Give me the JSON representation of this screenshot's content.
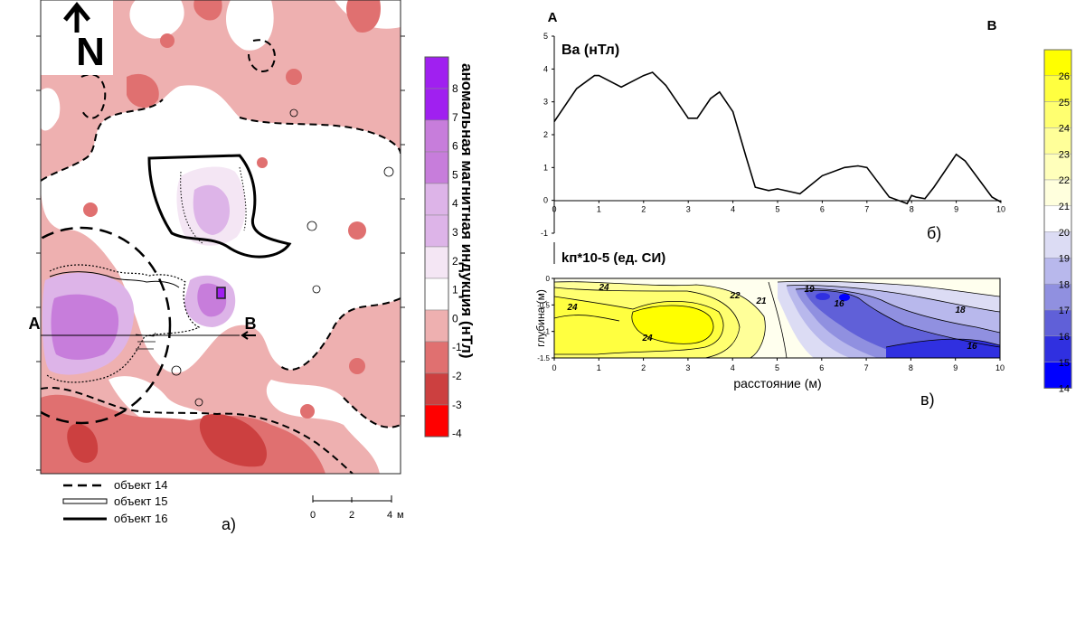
{
  "panel_a": {
    "north_label": "N",
    "point_a": "А",
    "point_b": "В",
    "legend_items": [
      "объект 14",
      "объект 15",
      "объект 16"
    ],
    "scale_ticks": [
      "0",
      "2",
      "4"
    ],
    "scale_unit": "м",
    "panel_label": "а)",
    "colorbar_title": "аномальная магнитная индукция (нТл)",
    "colorbar_ticks": [
      "8",
      "7",
      "6",
      "5",
      "4",
      "3",
      "2",
      "1",
      "0",
      "-1",
      "-2",
      "-3",
      "-4"
    ],
    "colors": {
      "c6_8": "#a020f0",
      "c4_6": "#c77ddb",
      "c2_4": "#ddb4e8",
      "c0_2": "#f4e6f4",
      "c0_n1": "#ffffff",
      "cn1_n2": "#eeb0b0",
      "cn2_n3": "#e07070",
      "cn3_n4": "#cc4040",
      "cn4": "#ff0000"
    }
  },
  "panel_b": {
    "label_a": "А",
    "label_b": "В",
    "series_title": "Ва (нТл)",
    "panel_label": "б)"
  },
  "panel_c": {
    "title": "kп*10-5 (ед. СИ)",
    "ylabel": "глубина (м)",
    "xlabel": "расстояние (м)",
    "panel_label": "в)",
    "contour_labels": [
      "24",
      "24",
      "24",
      "22",
      "21",
      "19",
      "16",
      "18",
      "16"
    ],
    "colorbar_ticks": [
      "26",
      "25",
      "24",
      "23",
      "22",
      "21",
      "20",
      "19",
      "18",
      "17",
      "16",
      "15",
      "14"
    ],
    "colorbar_colors": [
      "#ffff00",
      "#ffff40",
      "#ffff70",
      "#ffff99",
      "#ffffbb",
      "#ffffdd",
      "#ffffff",
      "#dcdcf4",
      "#b8b8ec",
      "#9090e0",
      "#6060d8",
      "#3030e0",
      "#0000ff"
    ]
  },
  "chart_data": [
    {
      "type": "line",
      "series_title": "Ва (нТл)",
      "x": [
        0,
        0.5,
        0.9,
        1.0,
        1.5,
        2.0,
        2.2,
        2.5,
        3.0,
        3.2,
        3.5,
        3.7,
        4.0,
        4.3,
        4.5,
        4.8,
        5.0,
        5.5,
        6.0,
        6.5,
        6.8,
        7.0,
        7.5,
        7.9,
        8.0,
        8.1,
        8.3,
        8.5,
        9.0,
        9.2,
        9.8,
        10.0
      ],
      "y": [
        2.4,
        3.4,
        3.8,
        3.8,
        3.45,
        3.8,
        3.9,
        3.5,
        2.5,
        2.5,
        3.1,
        3.3,
        2.7,
        1.3,
        0.4,
        0.3,
        0.35,
        0.2,
        0.75,
        1.0,
        1.05,
        1.0,
        0.1,
        -0.1,
        0.15,
        0.1,
        0.05,
        0.4,
        1.4,
        1.2,
        0.1,
        -0.05
      ],
      "xlim": [
        0,
        10
      ],
      "ylim": [
        -1,
        5
      ],
      "x_ticks": [
        0,
        1,
        2,
        3,
        4,
        5,
        6,
        7,
        8,
        9,
        10
      ],
      "y_ticks": [
        -1,
        0,
        1,
        2,
        3,
        4,
        5
      ]
    },
    {
      "type": "heatmap",
      "title": "kп*10-5 (ед. СИ)",
      "xlabel": "расстояние (м)",
      "ylabel": "глубина (м)",
      "xlim": [
        0,
        10
      ],
      "ylim": [
        -1.5,
        0
      ],
      "x_ticks": [
        0,
        1,
        2,
        3,
        4,
        5,
        6,
        7,
        8,
        9,
        10
      ],
      "y_ticks": [
        0,
        -0.5,
        -1,
        -1.5
      ],
      "contour_levels": [
        24,
        24,
        24,
        22,
        21,
        19,
        16,
        18,
        16
      ]
    }
  ]
}
